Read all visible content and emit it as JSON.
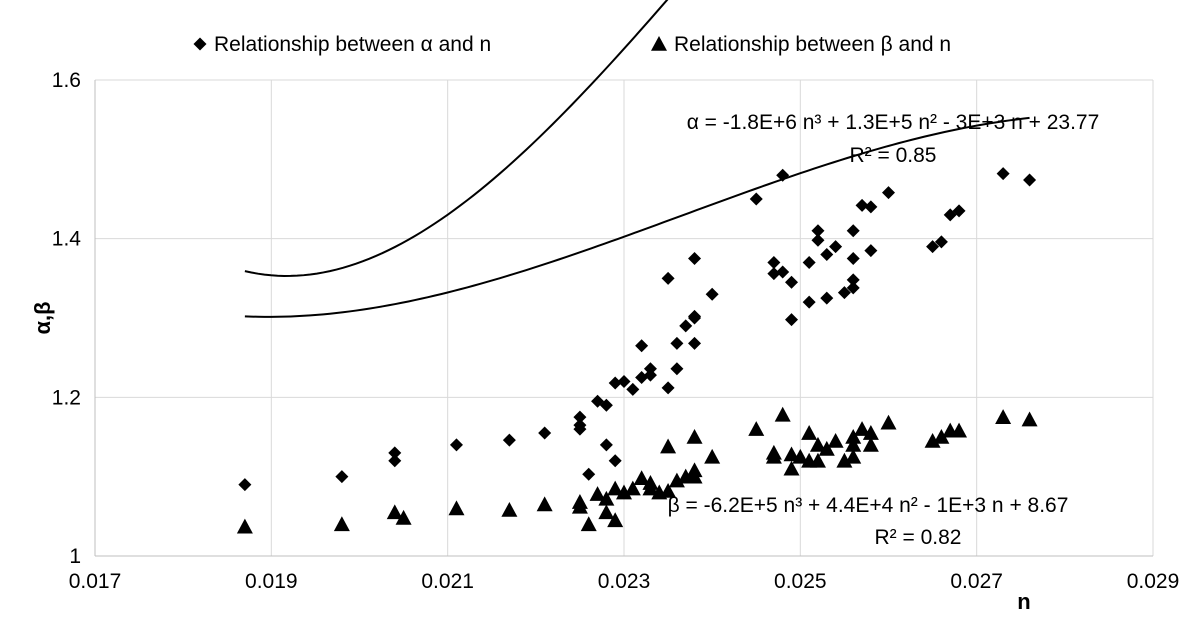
{
  "chart_data": {
    "type": "scatter",
    "title": "",
    "xlabel": "n",
    "ylabel": "α,β",
    "xlim": [
      0.017,
      0.029
    ],
    "ylim": [
      1.0,
      1.6
    ],
    "x_ticks": [
      "0.017",
      "0.019",
      "0.021",
      "0.023",
      "0.025",
      "0.027",
      "0.029"
    ],
    "y_ticks": [
      "1",
      "1.2",
      "1.4",
      "1.6"
    ],
    "grid": "on",
    "legend_position": "top",
    "series": [
      {
        "name": "Relationship between α and n",
        "marker": "diamond",
        "color": "#000000",
        "points": [
          [
            0.0187,
            1.09
          ],
          [
            0.0198,
            1.1
          ],
          [
            0.0204,
            1.12
          ],
          [
            0.0204,
            1.13
          ],
          [
            0.0211,
            1.14
          ],
          [
            0.0217,
            1.146
          ],
          [
            0.0221,
            1.155
          ],
          [
            0.0225,
            1.16
          ],
          [
            0.0225,
            1.165
          ],
          [
            0.0225,
            1.175
          ],
          [
            0.0226,
            1.103
          ],
          [
            0.0227,
            1.195
          ],
          [
            0.0228,
            1.19
          ],
          [
            0.0228,
            1.14
          ],
          [
            0.0229,
            1.12
          ],
          [
            0.0229,
            1.218
          ],
          [
            0.023,
            1.22
          ],
          [
            0.0231,
            1.21
          ],
          [
            0.0232,
            1.225
          ],
          [
            0.0232,
            1.265
          ],
          [
            0.0233,
            1.228
          ],
          [
            0.0233,
            1.236
          ],
          [
            0.0235,
            1.212
          ],
          [
            0.0235,
            1.35
          ],
          [
            0.0236,
            1.236
          ],
          [
            0.0236,
            1.268
          ],
          [
            0.0237,
            1.29
          ],
          [
            0.0238,
            1.3
          ],
          [
            0.0238,
            1.268
          ],
          [
            0.0238,
            1.375
          ],
          [
            0.0238,
            1.302
          ],
          [
            0.024,
            1.33
          ],
          [
            0.0245,
            1.45
          ],
          [
            0.0247,
            1.37
          ],
          [
            0.0247,
            1.356
          ],
          [
            0.0248,
            1.48
          ],
          [
            0.0248,
            1.358
          ],
          [
            0.0249,
            1.298
          ],
          [
            0.0249,
            1.345
          ],
          [
            0.0251,
            1.32
          ],
          [
            0.0251,
            1.37
          ],
          [
            0.0252,
            1.41
          ],
          [
            0.0252,
            1.398
          ],
          [
            0.0253,
            1.38
          ],
          [
            0.0253,
            1.325
          ],
          [
            0.0254,
            1.39
          ],
          [
            0.0255,
            1.332
          ],
          [
            0.0256,
            1.375
          ],
          [
            0.0256,
            1.41
          ],
          [
            0.0256,
            1.348
          ],
          [
            0.0256,
            1.338
          ],
          [
            0.0257,
            1.442
          ],
          [
            0.0258,
            1.44
          ],
          [
            0.0258,
            1.385
          ],
          [
            0.026,
            1.458
          ],
          [
            0.0265,
            1.39
          ],
          [
            0.0266,
            1.396
          ],
          [
            0.0267,
            1.43
          ],
          [
            0.0268,
            1.435
          ],
          [
            0.0273,
            1.482
          ],
          [
            0.0276,
            1.474
          ]
        ],
        "trendline": {
          "equation": "α = -1.8E+6 n³ + 1.3E+5 n² - 3E+3 n + 23.77",
          "r2": "R² = 0.85",
          "x_start": 0.0187,
          "x_end": 0.0276,
          "coefficients": [
            -1800000,
            130000,
            -3000,
            23.77
          ]
        }
      },
      {
        "name": "Relationship between β and n",
        "marker": "triangle",
        "color": "#000000",
        "points": [
          [
            0.0187,
            1.037
          ],
          [
            0.0198,
            1.04
          ],
          [
            0.0204,
            1.055
          ],
          [
            0.0205,
            1.048
          ],
          [
            0.0211,
            1.06
          ],
          [
            0.0217,
            1.058
          ],
          [
            0.0221,
            1.065
          ],
          [
            0.0225,
            1.068
          ],
          [
            0.0225,
            1.062
          ],
          [
            0.0226,
            1.04
          ],
          [
            0.0227,
            1.078
          ],
          [
            0.0228,
            1.055
          ],
          [
            0.0228,
            1.072
          ],
          [
            0.0229,
            1.045
          ],
          [
            0.0229,
            1.085
          ],
          [
            0.023,
            1.08
          ],
          [
            0.0231,
            1.085
          ],
          [
            0.0232,
            1.098
          ],
          [
            0.0233,
            1.085
          ],
          [
            0.0233,
            1.092
          ],
          [
            0.0234,
            1.08
          ],
          [
            0.0235,
            1.138
          ],
          [
            0.0235,
            1.082
          ],
          [
            0.0236,
            1.095
          ],
          [
            0.0237,
            1.1
          ],
          [
            0.0238,
            1.15
          ],
          [
            0.0238,
            1.108
          ],
          [
            0.0238,
            1.1
          ],
          [
            0.024,
            1.125
          ],
          [
            0.0245,
            1.16
          ],
          [
            0.0247,
            1.13
          ],
          [
            0.0247,
            1.125
          ],
          [
            0.0248,
            1.178
          ],
          [
            0.0249,
            1.11
          ],
          [
            0.0249,
            1.128
          ],
          [
            0.025,
            1.125
          ],
          [
            0.0251,
            1.12
          ],
          [
            0.0251,
            1.155
          ],
          [
            0.0252,
            1.14
          ],
          [
            0.0252,
            1.12
          ],
          [
            0.0253,
            1.135
          ],
          [
            0.0254,
            1.145
          ],
          [
            0.0255,
            1.12
          ],
          [
            0.0256,
            1.14
          ],
          [
            0.0256,
            1.15
          ],
          [
            0.0256,
            1.125
          ],
          [
            0.0257,
            1.16
          ],
          [
            0.0258,
            1.155
          ],
          [
            0.0258,
            1.14
          ],
          [
            0.026,
            1.168
          ],
          [
            0.0265,
            1.145
          ],
          [
            0.0266,
            1.15
          ],
          [
            0.0267,
            1.158
          ],
          [
            0.0268,
            1.158
          ],
          [
            0.0273,
            1.175
          ],
          [
            0.0276,
            1.172
          ]
        ],
        "trendline": {
          "equation": "β = -6.2E+5 n³ + 4.4E+4 n² - 1E+3 n + 8.67",
          "r2": "R² = 0.82",
          "x_start": 0.0187,
          "x_end": 0.0276,
          "coefficients": [
            -620000,
            44000,
            -1000,
            8.67
          ]
        }
      }
    ]
  }
}
